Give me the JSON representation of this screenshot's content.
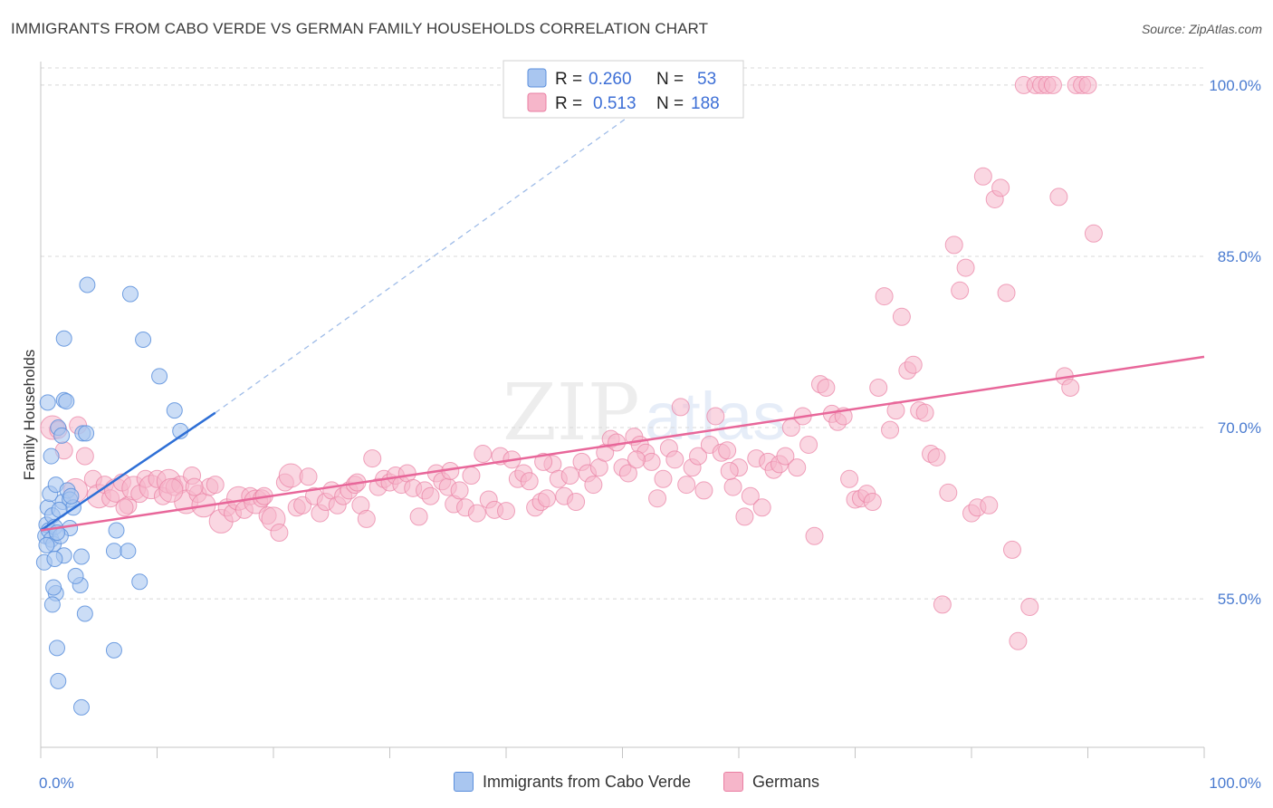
{
  "title": "IMMIGRANTS FROM CABO VERDE VS GERMAN FAMILY HOUSEHOLDS CORRELATION CHART",
  "source": "Source: ZipAtlas.com",
  "watermark": {
    "zip": "ZIP",
    "atlas": "atlas"
  },
  "colors": {
    "blue_fill": "#a9c6f0",
    "blue_stroke": "#5b8fdc",
    "blue_line": "#2e6fd6",
    "pink_fill": "#f6b6ca",
    "pink_stroke": "#ea7fa3",
    "pink_line": "#e8679a",
    "grid": "#d8d8d8",
    "tick_text": "#4a7bd0"
  },
  "legend": {
    "rows": [
      {
        "r_label": "R =",
        "r_value": "0.260",
        "n_label": "N =",
        "n_value": "53"
      },
      {
        "r_label": "R =",
        "r_value": "0.513",
        "n_label": "N =",
        "n_value": "188"
      }
    ]
  },
  "bottom_legend": [
    "Immigrants from Cabo Verde",
    "Germans"
  ],
  "chart_data": {
    "type": "scatter",
    "title": "IMMIGRANTS FROM CABO VERDE VS GERMAN FAMILY HOUSEHOLDS CORRELATION CHART",
    "xlabel": "",
    "ylabel": "Family Households",
    "xlim": [
      0,
      100
    ],
    "ylim": [
      42,
      101.5
    ],
    "x_tick_labels": [
      "0.0%",
      "100.0%"
    ],
    "y_ticks": [
      55,
      70,
      85,
      100
    ],
    "y_tick_labels": [
      "55.0%",
      "70.0%",
      "85.0%",
      "100.0%"
    ],
    "grid": true,
    "series": [
      {
        "name": "Immigrants from Cabo Verde",
        "R": 0.26,
        "N": 53,
        "trend": {
          "x0": 0,
          "y0": 61.0,
          "x1": 15,
          "y1": 71.3,
          "dash_to": {
            "x": 55,
            "y": 100.5
          }
        },
        "points": [
          [
            0.3,
            58.2
          ],
          [
            0.4,
            60.5
          ],
          [
            0.5,
            61.5
          ],
          [
            0.6,
            63.0
          ],
          [
            0.7,
            61.0
          ],
          [
            0.8,
            64.2
          ],
          [
            0.9,
            60.2
          ],
          [
            1.0,
            62.3
          ],
          [
            1.1,
            59.8
          ],
          [
            1.2,
            61.3
          ],
          [
            0.6,
            72.2
          ],
          [
            0.9,
            67.5
          ],
          [
            1.3,
            65.0
          ],
          [
            1.5,
            70.0
          ],
          [
            1.8,
            69.3
          ],
          [
            2.0,
            72.4
          ],
          [
            2.2,
            72.3
          ],
          [
            1.9,
            63.5
          ],
          [
            2.3,
            64.5
          ],
          [
            2.5,
            61.2
          ],
          [
            1.7,
            60.5
          ],
          [
            2.0,
            58.8
          ],
          [
            1.2,
            58.5
          ],
          [
            1.3,
            55.5
          ],
          [
            1.0,
            54.5
          ],
          [
            1.4,
            50.7
          ],
          [
            1.5,
            47.8
          ],
          [
            3.5,
            58.7
          ],
          [
            3.4,
            56.2
          ],
          [
            3.0,
            57.0
          ],
          [
            3.8,
            53.7
          ],
          [
            3.6,
            69.5
          ],
          [
            3.9,
            69.5
          ],
          [
            6.5,
            61.0
          ],
          [
            6.3,
            59.2
          ],
          [
            7.5,
            59.2
          ],
          [
            8.5,
            56.5
          ],
          [
            6.3,
            50.5
          ],
          [
            3.5,
            45.5
          ],
          [
            4.0,
            82.5
          ],
          [
            7.7,
            81.7
          ],
          [
            8.8,
            77.7
          ],
          [
            2.0,
            77.8
          ],
          [
            10.2,
            74.5
          ],
          [
            11.5,
            71.5
          ],
          [
            12.0,
            69.7
          ],
          [
            2.5,
            63.7
          ],
          [
            2.8,
            63.0
          ],
          [
            1.6,
            62.8
          ],
          [
            0.5,
            59.7
          ],
          [
            1.1,
            56.0
          ],
          [
            2.6,
            64.0
          ],
          [
            1.4,
            60.8
          ]
        ]
      },
      {
        "name": "Germans",
        "R": 0.513,
        "N": 188,
        "trend": {
          "x0": 0,
          "y0": 61.0,
          "x1": 100,
          "y1": 76.2
        },
        "points": [
          [
            1.0,
            70.0
          ],
          [
            1.5,
            69.8
          ],
          [
            2.0,
            68.0
          ],
          [
            3.0,
            64.5
          ],
          [
            3.8,
            67.5
          ],
          [
            4.5,
            65.5
          ],
          [
            5.0,
            64.0
          ],
          [
            5.5,
            65.0
          ],
          [
            6.0,
            63.8
          ],
          [
            6.5,
            64.5
          ],
          [
            7.0,
            65.2
          ],
          [
            7.5,
            63.2
          ],
          [
            8.0,
            64.7
          ],
          [
            8.5,
            64.2
          ],
          [
            9.0,
            65.5
          ],
          [
            9.5,
            64.8
          ],
          [
            10.0,
            65.5
          ],
          [
            10.5,
            64.0
          ],
          [
            11.0,
            65.3
          ],
          [
            11.5,
            64.8
          ],
          [
            12.0,
            65.0
          ],
          [
            12.5,
            63.5
          ],
          [
            13.0,
            65.8
          ],
          [
            13.5,
            64.2
          ],
          [
            14.0,
            63.2
          ],
          [
            14.5,
            64.8
          ],
          [
            15.0,
            65.0
          ],
          [
            15.5,
            61.8
          ],
          [
            16.0,
            63.0
          ],
          [
            16.5,
            62.5
          ],
          [
            17.0,
            63.8
          ],
          [
            17.5,
            62.8
          ],
          [
            18.0,
            64.0
          ],
          [
            18.5,
            63.5
          ],
          [
            19.0,
            63.8
          ],
          [
            19.5,
            62.3
          ],
          [
            20.0,
            62.0
          ],
          [
            20.5,
            60.8
          ],
          [
            21.0,
            65.2
          ],
          [
            21.5,
            65.8
          ],
          [
            22.0,
            63.0
          ],
          [
            22.5,
            63.2
          ],
          [
            23.0,
            65.7
          ],
          [
            23.5,
            64.0
          ],
          [
            24.0,
            62.5
          ],
          [
            24.5,
            63.5
          ],
          [
            25.0,
            64.5
          ],
          [
            25.5,
            63.2
          ],
          [
            26.0,
            64.0
          ],
          [
            26.5,
            64.5
          ],
          [
            27.0,
            65.0
          ],
          [
            27.5,
            63.2
          ],
          [
            28.0,
            62.0
          ],
          [
            28.5,
            67.3
          ],
          [
            29.0,
            64.8
          ],
          [
            29.5,
            65.5
          ],
          [
            30.0,
            65.2
          ],
          [
            30.5,
            65.8
          ],
          [
            31.0,
            65.0
          ],
          [
            31.5,
            66.0
          ],
          [
            32.0,
            64.7
          ],
          [
            32.5,
            62.2
          ],
          [
            33.0,
            64.5
          ],
          [
            33.5,
            64.0
          ],
          [
            34.0,
            66.0
          ],
          [
            34.5,
            65.3
          ],
          [
            35.0,
            64.8
          ],
          [
            35.5,
            63.3
          ],
          [
            36.0,
            64.5
          ],
          [
            36.5,
            63.0
          ],
          [
            37.0,
            65.8
          ],
          [
            37.5,
            62.5
          ],
          [
            38.0,
            67.7
          ],
          [
            38.5,
            63.7
          ],
          [
            39.0,
            62.8
          ],
          [
            39.5,
            67.5
          ],
          [
            40.0,
            62.7
          ],
          [
            40.5,
            67.2
          ],
          [
            41.0,
            65.5
          ],
          [
            41.5,
            66.0
          ],
          [
            42.0,
            65.3
          ],
          [
            42.5,
            63.0
          ],
          [
            43.0,
            63.5
          ],
          [
            43.5,
            63.8
          ],
          [
            44.0,
            66.8
          ],
          [
            44.5,
            65.5
          ],
          [
            45.0,
            64.0
          ],
          [
            45.5,
            65.8
          ],
          [
            46.0,
            63.5
          ],
          [
            46.5,
            67.0
          ],
          [
            47.0,
            66.0
          ],
          [
            47.5,
            65.0
          ],
          [
            48.0,
            66.5
          ],
          [
            48.5,
            67.8
          ],
          [
            49.0,
            69.0
          ],
          [
            49.5,
            68.7
          ],
          [
            50.0,
            66.5
          ],
          [
            50.5,
            66.0
          ],
          [
            51.0,
            69.2
          ],
          [
            51.5,
            68.5
          ],
          [
            52.0,
            67.8
          ],
          [
            52.5,
            67.0
          ],
          [
            53.0,
            63.8
          ],
          [
            53.5,
            65.5
          ],
          [
            54.0,
            68.2
          ],
          [
            54.5,
            67.2
          ],
          [
            55.0,
            71.8
          ],
          [
            55.5,
            65.0
          ],
          [
            56.0,
            66.5
          ],
          [
            56.5,
            67.5
          ],
          [
            57.0,
            64.5
          ],
          [
            57.5,
            68.5
          ],
          [
            58.0,
            71.0
          ],
          [
            58.5,
            67.8
          ],
          [
            59.0,
            68.0
          ],
          [
            59.5,
            64.8
          ],
          [
            60.0,
            66.5
          ],
          [
            60.5,
            62.2
          ],
          [
            61.0,
            64.0
          ],
          [
            61.5,
            67.3
          ],
          [
            62.0,
            63.0
          ],
          [
            62.5,
            67.0
          ],
          [
            63.0,
            66.3
          ],
          [
            63.5,
            66.8
          ],
          [
            64.0,
            67.5
          ],
          [
            64.5,
            70.0
          ],
          [
            65.0,
            66.5
          ],
          [
            65.5,
            71.0
          ],
          [
            66.0,
            68.5
          ],
          [
            66.5,
            60.5
          ],
          [
            67.0,
            73.8
          ],
          [
            67.5,
            73.5
          ],
          [
            68.0,
            71.2
          ],
          [
            68.5,
            70.5
          ],
          [
            69.0,
            71.0
          ],
          [
            69.5,
            65.5
          ],
          [
            70.0,
            63.7
          ],
          [
            70.5,
            63.8
          ],
          [
            71.0,
            64.2
          ],
          [
            71.5,
            63.5
          ],
          [
            72.0,
            73.5
          ],
          [
            72.5,
            81.5
          ],
          [
            73.0,
            69.8
          ],
          [
            73.5,
            71.5
          ],
          [
            74.0,
            79.7
          ],
          [
            74.5,
            75.0
          ],
          [
            75.0,
            75.5
          ],
          [
            75.5,
            71.5
          ],
          [
            76.0,
            71.3
          ],
          [
            76.5,
            67.7
          ],
          [
            77.0,
            67.4
          ],
          [
            77.5,
            54.5
          ],
          [
            78.0,
            64.3
          ],
          [
            78.5,
            86.0
          ],
          [
            79.0,
            82.0
          ],
          [
            79.5,
            84.0
          ],
          [
            80.0,
            62.5
          ],
          [
            80.5,
            63.0
          ],
          [
            81.0,
            92.0
          ],
          [
            81.5,
            63.2
          ],
          [
            82.0,
            90.0
          ],
          [
            82.5,
            91.0
          ],
          [
            83.0,
            81.8
          ],
          [
            83.5,
            59.3
          ],
          [
            84.0,
            51.3
          ],
          [
            84.5,
            100.0
          ],
          [
            85.0,
            54.3
          ],
          [
            85.5,
            100.0
          ],
          [
            86.0,
            100.0
          ],
          [
            86.5,
            100.0
          ],
          [
            87.0,
            100.0
          ],
          [
            87.5,
            90.2
          ],
          [
            88.0,
            74.5
          ],
          [
            88.5,
            73.5
          ],
          [
            89.0,
            100.0
          ],
          [
            89.5,
            100.0
          ],
          [
            90.0,
            100.0
          ],
          [
            90.5,
            87.0
          ],
          [
            3.2,
            70.2
          ],
          [
            7.2,
            63.0
          ],
          [
            11.2,
            64.5
          ],
          [
            13.2,
            64.8
          ],
          [
            19.2,
            64.0
          ],
          [
            27.2,
            65.2
          ],
          [
            35.2,
            66.2
          ],
          [
            43.2,
            67.0
          ],
          [
            51.2,
            67.2
          ],
          [
            59.2,
            66.2
          ]
        ]
      }
    ]
  }
}
